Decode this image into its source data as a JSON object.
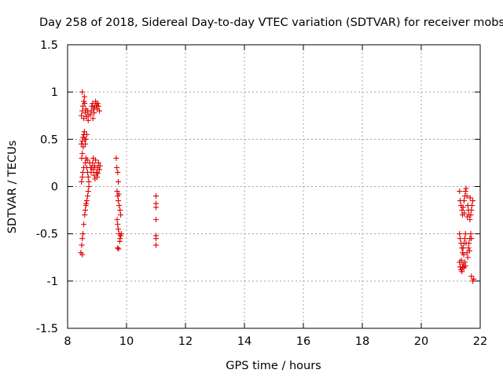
{
  "chart_data": {
    "type": "scatter",
    "title": "Day 258 of 2018, Sidereal Day-to-day VTEC variation (SDTVAR) for receiver mobs",
    "xlabel": "GPS time / hours",
    "ylabel": "SDTVAR / TECUs",
    "xlim": [
      8,
      22
    ],
    "ylim": [
      -1.5,
      1.5
    ],
    "xticks": [
      8,
      10,
      12,
      14,
      16,
      18,
      20,
      22
    ],
    "xtick_labels": [
      "8",
      "10",
      "12",
      "14",
      "16",
      "18",
      "20",
      "22"
    ],
    "yticks": [
      -1.5,
      -1,
      -0.5,
      0,
      0.5,
      1,
      1.5
    ],
    "ytick_labels": [
      "-1.5",
      "-1",
      "-0.5",
      "0",
      "0.5",
      "1",
      "1.5"
    ],
    "grid": true,
    "marker": "+",
    "color": "#e00000",
    "series": [
      {
        "name": "SDTVAR",
        "points": [
          [
            8.45,
            -0.7
          ],
          [
            8.48,
            -0.62
          ],
          [
            8.5,
            -0.55
          ],
          [
            8.52,
            -0.5
          ],
          [
            8.55,
            -0.4
          ],
          [
            8.5,
            -0.72
          ],
          [
            8.47,
            0.05
          ],
          [
            8.5,
            0.1
          ],
          [
            8.52,
            0.15
          ],
          [
            8.55,
            0.2
          ],
          [
            8.48,
            0.3
          ],
          [
            8.5,
            0.35
          ],
          [
            8.47,
            0.45
          ],
          [
            8.5,
            0.48
          ],
          [
            8.52,
            0.52
          ],
          [
            8.55,
            0.55
          ],
          [
            8.58,
            0.5
          ],
          [
            8.6,
            0.45
          ],
          [
            8.62,
            0.5
          ],
          [
            8.65,
            0.55
          ],
          [
            8.57,
            0.58
          ],
          [
            8.53,
            0.42
          ],
          [
            8.47,
            0.75
          ],
          [
            8.5,
            0.8
          ],
          [
            8.52,
            0.85
          ],
          [
            8.55,
            0.9
          ],
          [
            8.57,
            0.95
          ],
          [
            8.5,
            1.0
          ],
          [
            8.55,
            0.72
          ],
          [
            8.6,
            0.78
          ],
          [
            8.62,
            0.82
          ],
          [
            8.65,
            0.74
          ],
          [
            8.68,
            0.8
          ],
          [
            8.7,
            0.7
          ],
          [
            8.72,
            0.76
          ],
          [
            8.58,
            0.88
          ],
          [
            8.6,
            -0.25
          ],
          [
            8.62,
            -0.2
          ],
          [
            8.65,
            -0.15
          ],
          [
            8.68,
            -0.1
          ],
          [
            8.7,
            -0.05
          ],
          [
            8.72,
            0.0
          ],
          [
            8.58,
            -0.3
          ],
          [
            8.63,
            -0.18
          ],
          [
            8.6,
            0.25
          ],
          [
            8.62,
            0.3
          ],
          [
            8.65,
            0.2
          ],
          [
            8.68,
            0.15
          ],
          [
            8.7,
            0.1
          ],
          [
            8.72,
            0.05
          ],
          [
            8.75,
            0.25
          ],
          [
            8.78,
            0.2
          ],
          [
            8.67,
            0.28
          ],
          [
            8.8,
            0.15
          ],
          [
            8.82,
            0.2
          ],
          [
            8.85,
            0.25
          ],
          [
            8.88,
            0.18
          ],
          [
            8.9,
            0.12
          ],
          [
            8.92,
            0.22
          ],
          [
            8.95,
            0.28
          ],
          [
            8.98,
            0.15
          ],
          [
            9.0,
            0.1
          ],
          [
            9.02,
            0.2
          ],
          [
            9.05,
            0.25
          ],
          [
            9.08,
            0.18
          ],
          [
            9.1,
            0.22
          ],
          [
            8.87,
            0.3
          ],
          [
            8.93,
            0.08
          ],
          [
            9.03,
            0.14
          ],
          [
            8.8,
            0.8
          ],
          [
            8.82,
            0.85
          ],
          [
            8.85,
            0.88
          ],
          [
            8.88,
            0.82
          ],
          [
            8.9,
            0.78
          ],
          [
            8.92,
            0.84
          ],
          [
            8.95,
            0.9
          ],
          [
            8.98,
            0.86
          ],
          [
            9.0,
            0.82
          ],
          [
            9.02,
            0.88
          ],
          [
            9.05,
            0.85
          ],
          [
            9.08,
            0.8
          ],
          [
            8.78,
            0.76
          ],
          [
            8.86,
            0.72
          ],
          [
            9.65,
            0.3
          ],
          [
            9.67,
            0.2
          ],
          [
            9.7,
            0.15
          ],
          [
            9.72,
            0.05
          ],
          [
            9.68,
            -0.05
          ],
          [
            9.7,
            -0.1
          ],
          [
            9.72,
            -0.15
          ],
          [
            9.75,
            -0.2
          ],
          [
            9.78,
            -0.25
          ],
          [
            9.8,
            -0.3
          ],
          [
            9.74,
            -0.08
          ],
          [
            9.68,
            -0.35
          ],
          [
            9.7,
            -0.4
          ],
          [
            9.72,
            -0.45
          ],
          [
            9.75,
            -0.5
          ],
          [
            9.78,
            -0.55
          ],
          [
            9.8,
            -0.52
          ],
          [
            9.82,
            -0.5
          ],
          [
            9.7,
            -0.65
          ],
          [
            9.73,
            -0.66
          ],
          [
            9.77,
            -0.58
          ],
          [
            11.0,
            -0.1
          ],
          [
            11.0,
            -0.18
          ],
          [
            11.0,
            -0.22
          ],
          [
            11.0,
            -0.35
          ],
          [
            11.0,
            -0.52
          ],
          [
            11.0,
            -0.55
          ],
          [
            11.0,
            -0.62
          ],
          [
            21.3,
            -0.05
          ],
          [
            21.32,
            -0.15
          ],
          [
            21.35,
            -0.2
          ],
          [
            21.38,
            -0.25
          ],
          [
            21.4,
            -0.3
          ],
          [
            21.42,
            -0.22
          ],
          [
            21.45,
            -0.15
          ],
          [
            21.48,
            -0.1
          ],
          [
            21.5,
            -0.05
          ],
          [
            21.52,
            -0.02
          ],
          [
            21.55,
            -0.1
          ],
          [
            21.58,
            -0.2
          ],
          [
            21.6,
            -0.25
          ],
          [
            21.62,
            -0.3
          ],
          [
            21.65,
            -0.35
          ],
          [
            21.68,
            -0.3
          ],
          [
            21.7,
            -0.25
          ],
          [
            21.72,
            -0.2
          ],
          [
            21.75,
            -0.15
          ],
          [
            21.46,
            -0.28
          ],
          [
            21.56,
            -0.32
          ],
          [
            21.66,
            -0.12
          ],
          [
            21.3,
            -0.5
          ],
          [
            21.32,
            -0.55
          ],
          [
            21.35,
            -0.6
          ],
          [
            21.38,
            -0.65
          ],
          [
            21.4,
            -0.7
          ],
          [
            21.42,
            -0.65
          ],
          [
            21.45,
            -0.6
          ],
          [
            21.48,
            -0.55
          ],
          [
            21.5,
            -0.5
          ],
          [
            21.52,
            -0.6
          ],
          [
            21.55,
            -0.7
          ],
          [
            21.58,
            -0.75
          ],
          [
            21.6,
            -0.65
          ],
          [
            21.62,
            -0.6
          ],
          [
            21.65,
            -0.55
          ],
          [
            21.68,
            -0.5
          ],
          [
            21.7,
            -0.55
          ],
          [
            21.44,
            -0.72
          ],
          [
            21.64,
            -0.68
          ],
          [
            21.3,
            -0.8
          ],
          [
            21.32,
            -0.85
          ],
          [
            21.35,
            -0.88
          ],
          [
            21.38,
            -0.9
          ],
          [
            21.4,
            -0.85
          ],
          [
            21.42,
            -0.82
          ],
          [
            21.45,
            -0.86
          ],
          [
            21.48,
            -0.8
          ],
          [
            21.5,
            -0.84
          ],
          [
            21.36,
            -0.78
          ],
          [
            21.7,
            -0.95
          ],
          [
            21.75,
            -1.0
          ],
          [
            21.78,
            -0.98
          ]
        ]
      }
    ]
  }
}
